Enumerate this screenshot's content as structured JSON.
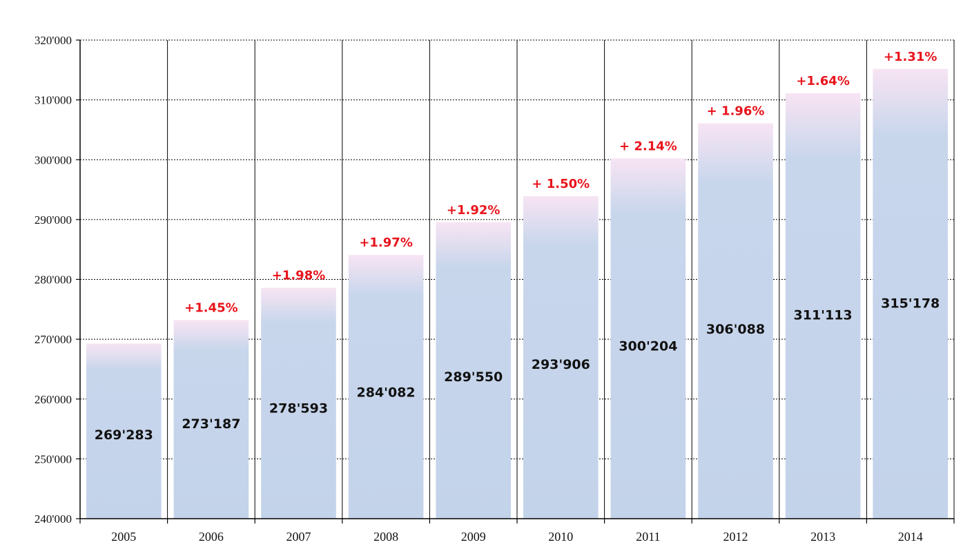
{
  "colors": {
    "bar_top": "#f6e6f3",
    "bar_body": "#c5d5eb",
    "percent": "#e8141c",
    "axis": "#000000",
    "grid": "#000000"
  },
  "chart_data": {
    "type": "bar",
    "categories": [
      "2005",
      "2006",
      "2007",
      "2008",
      "2009",
      "2010",
      "2011",
      "2012",
      "2013",
      "2014"
    ],
    "values": [
      269283,
      273187,
      278593,
      284082,
      289550,
      293906,
      300204,
      306088,
      311113,
      315178
    ],
    "value_labels": [
      "269'283",
      "273'187",
      "278'593",
      "284'082",
      "289'550",
      "293'906",
      "300'204",
      "306'088",
      "311'113",
      "315'178"
    ],
    "percent_labels": [
      "",
      "+1.45%",
      "+1.98%",
      "+1.97%",
      "+1.92%",
      "+ 1.50%",
      "+ 2.14%",
      "+ 1.96%",
      "+1.64%",
      "+1.31%"
    ],
    "yticks": [
      240000,
      250000,
      260000,
      270000,
      280000,
      290000,
      300000,
      310000,
      320000
    ],
    "ytick_labels": [
      "240'000",
      "250'000",
      "260'000",
      "270'000",
      "280'000",
      "290'000",
      "300'000",
      "310'000",
      "320'000"
    ],
    "ylim": [
      240000,
      320000
    ],
    "title": "",
    "xlabel": "",
    "ylabel": "",
    "grid": true,
    "grid_style": "dotted-horizontal, solid-vertical category separators",
    "legend": "none"
  }
}
